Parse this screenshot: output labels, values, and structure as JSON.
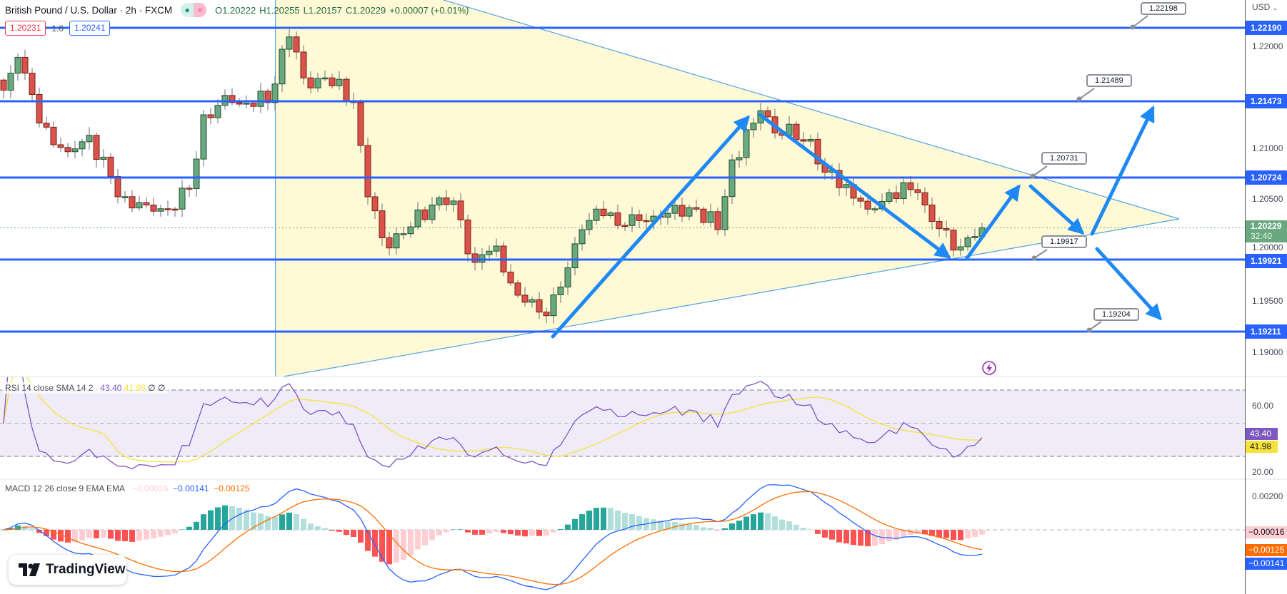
{
  "header": {
    "symbol": "British Pound / U.S. Dollar · 2h · FXCM",
    "open": "O1.20222",
    "high": "H1.20255",
    "low": "L1.20157",
    "close": "C1.20229",
    "change": "+0.00007 (+0.01%)",
    "market_status_icon": "open-dot-icon",
    "wave_icon": "≈",
    "sell_price": "1.20231",
    "spread": "1.0",
    "buy_price": "1.20241"
  },
  "price_axis": {
    "currency": "USD",
    "ticks": [
      "1.22000",
      "1.21000",
      "1.20500",
      "1.20000",
      "1.19500",
      "1.19000"
    ],
    "levels": [
      "1.22190",
      "1.21473",
      "1.20724",
      "1.19921",
      "1.19211"
    ],
    "current_price": "1.20229",
    "countdown": "32:40"
  },
  "callouts": [
    "1.22198",
    "1.21489",
    "1.20731",
    "1.19917",
    "1.19204"
  ],
  "rsi": {
    "title": "RSI 14 close SMA 14 2",
    "rsi_value": "43.40",
    "sma_value": "41.98",
    "extra1": "∅",
    "extra2": "∅",
    "ticks": [
      "60.00",
      "20.00"
    ]
  },
  "macd": {
    "title": "MACD 12 26 close 9 EMA EMA",
    "hist_value": "−0.00016",
    "macd_value": "−0.00141",
    "signal_value": "−0.00125",
    "ticks": [
      "0.00200"
    ]
  },
  "logo": {
    "text": "TradingView"
  },
  "colors": {
    "level_line": "#2962ff",
    "arrow": "#1e88f5",
    "candle_up": "#6aa87f",
    "candle_down": "#d9534a",
    "rsi": "#7e57c2",
    "rsi_sma": "#f5e33a",
    "macd": "#2962ff",
    "signal": "#ff6d00"
  },
  "chart_data": {
    "type": "candlestick",
    "candle_count": 138,
    "close_keypoints": [
      [
        0,
        1.21578
      ],
      [
        2,
        1.219
      ],
      [
        5,
        1.21256
      ],
      [
        9,
        1.20975
      ],
      [
        12,
        1.21136
      ],
      [
        16,
        1.20533
      ],
      [
        20,
        1.20452
      ],
      [
        24,
        1.20412
      ],
      [
        26,
        1.20613
      ],
      [
        28,
        1.21337
      ],
      [
        32,
        1.21457
      ],
      [
        37,
        1.21457
      ],
      [
        39,
        1.2198
      ],
      [
        40,
        1.22101
      ],
      [
        42,
        1.21699
      ],
      [
        45,
        1.21699
      ],
      [
        49,
        1.21457
      ],
      [
        51,
        1.20533
      ],
      [
        53,
        1.20131
      ],
      [
        56,
        1.20171
      ],
      [
        60,
        1.20452
      ],
      [
        63,
        1.20492
      ],
      [
        66,
        1.1989
      ],
      [
        69,
        1.2005
      ],
      [
        72,
        1.19568
      ],
      [
        76,
        1.19367
      ],
      [
        78,
        1.19648
      ],
      [
        81,
        1.20211
      ],
      [
        83,
        1.20412
      ],
      [
        87,
        1.20251
      ],
      [
        92,
        1.20332
      ],
      [
        97,
        1.20412
      ],
      [
        100,
        1.20211
      ],
      [
        102,
        1.20895
      ],
      [
        105,
        1.21256
      ],
      [
        106,
        1.21377
      ],
      [
        109,
        1.21136
      ],
      [
        113,
        1.21096
      ],
      [
        115,
        1.20774
      ],
      [
        118,
        1.20653
      ],
      [
        121,
        1.20412
      ],
      [
        124,
        1.20573
      ],
      [
        128,
        1.20573
      ],
      [
        130,
        1.20291
      ],
      [
        133,
        1.2001
      ],
      [
        135,
        1.20131
      ],
      [
        137,
        1.20229
      ]
    ],
    "y_range": [
      1.1888,
      1.2246
    ]
  }
}
